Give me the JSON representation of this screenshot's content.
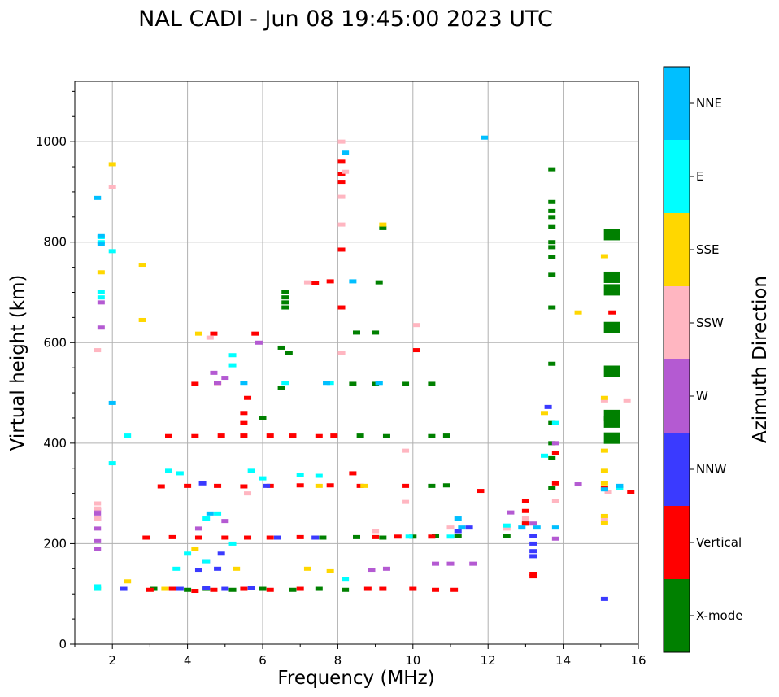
{
  "chart_data": {
    "type": "scatter",
    "title": "NAL CADI - Jun 08 19:45:00 2023 UTC",
    "xlabel": "Frequency (MHz)",
    "ylabel": "Virtual height (km)",
    "xlim": [
      1,
      16
    ],
    "ylim": [
      0,
      1120
    ],
    "xticks": [
      "2",
      "4",
      "6",
      "8",
      "10",
      "12",
      "14",
      "16"
    ],
    "yticks": [
      "0",
      "200",
      "400",
      "600",
      "800",
      "1000"
    ],
    "grid": true,
    "colorbar": {
      "label": "Azimuth Direction",
      "categories": [
        "X-mode",
        "Vertical",
        "NNW",
        "W",
        "SSW",
        "SSE",
        "E",
        "NNE"
      ],
      "colors": [
        "#008000",
        "#ff0000",
        "#3a3aff",
        "#b45ad2",
        "#ffb6c1",
        "#ffd700",
        "#00ffff",
        "#00bfff"
      ]
    },
    "series": [
      {
        "name": "X-mode",
        "points": [
          [
            3.1,
            110
          ],
          [
            4.0,
            108
          ],
          [
            4.5,
            110
          ],
          [
            5.2,
            108
          ],
          [
            6.0,
            110
          ],
          [
            6.8,
            108
          ],
          [
            7.5,
            110
          ],
          [
            8.2,
            108
          ],
          [
            7.6,
            212
          ],
          [
            8.5,
            213
          ],
          [
            9.2,
            212
          ],
          [
            10.0,
            214
          ],
          [
            10.6,
            215
          ],
          [
            11.2,
            215
          ],
          [
            10.5,
            315
          ],
          [
            10.9,
            316
          ],
          [
            8.6,
            415
          ],
          [
            9.3,
            414
          ],
          [
            10.5,
            414
          ],
          [
            10.9,
            415
          ],
          [
            8.4,
            518
          ],
          [
            9.0,
            518
          ],
          [
            9.8,
            518
          ],
          [
            10.5,
            518
          ],
          [
            6.5,
            590
          ],
          [
            6.7,
            580
          ],
          [
            8.5,
            620
          ],
          [
            9.0,
            620
          ],
          [
            9.2,
            828
          ],
          [
            9.1,
            720
          ],
          [
            12.5,
            216
          ],
          [
            13.0,
            240
          ],
          [
            13.7,
            945
          ],
          [
            13.7,
            880
          ],
          [
            13.7,
            862
          ],
          [
            13.7,
            850
          ],
          [
            13.7,
            830
          ],
          [
            13.7,
            800
          ],
          [
            13.7,
            790
          ],
          [
            13.7,
            770
          ],
          [
            13.7,
            735
          ],
          [
            13.7,
            670
          ],
          [
            13.7,
            558
          ],
          [
            13.7,
            440
          ],
          [
            13.7,
            400
          ],
          [
            13.7,
            370
          ],
          [
            13.7,
            310
          ],
          [
            15.3,
            815
          ],
          [
            15.3,
            730
          ],
          [
            15.3,
            705
          ],
          [
            15.3,
            630
          ],
          [
            15.3,
            543
          ],
          [
            15.3,
            455
          ],
          [
            15.3,
            442
          ],
          [
            15.3,
            410
          ],
          [
            6.6,
            700
          ],
          [
            6.6,
            690
          ],
          [
            6.6,
            680
          ],
          [
            6.6,
            670
          ],
          [
            6.5,
            510
          ],
          [
            6.0,
            450
          ]
        ]
      },
      {
        "name": "Vertical",
        "points": [
          [
            3.0,
            108
          ],
          [
            3.6,
            110
          ],
          [
            4.2,
            106
          ],
          [
            4.7,
            108
          ],
          [
            5.5,
            110
          ],
          [
            6.2,
            108
          ],
          [
            7.0,
            110
          ],
          [
            8.8,
            110
          ],
          [
            9.2,
            110
          ],
          [
            10.0,
            110
          ],
          [
            10.6,
            108
          ],
          [
            11.1,
            108
          ],
          [
            2.9,
            212
          ],
          [
            3.6,
            213
          ],
          [
            4.3,
            212
          ],
          [
            5.0,
            212
          ],
          [
            5.6,
            212
          ],
          [
            6.2,
            212
          ],
          [
            7.0,
            213
          ],
          [
            9.0,
            213
          ],
          [
            9.6,
            214
          ],
          [
            10.5,
            214
          ],
          [
            3.3,
            314
          ],
          [
            4.0,
            315
          ],
          [
            4.8,
            315
          ],
          [
            5.5,
            314
          ],
          [
            6.2,
            315
          ],
          [
            7.0,
            316
          ],
          [
            7.8,
            316
          ],
          [
            8.6,
            315
          ],
          [
            9.8,
            315
          ],
          [
            3.5,
            414
          ],
          [
            4.2,
            414
          ],
          [
            4.9,
            415
          ],
          [
            5.5,
            415
          ],
          [
            6.2,
            415
          ],
          [
            6.8,
            415
          ],
          [
            7.5,
            414
          ],
          [
            7.9,
            415
          ],
          [
            5.5,
            440
          ],
          [
            5.5,
            460
          ],
          [
            5.6,
            490
          ],
          [
            4.8,
            520
          ],
          [
            4.2,
            518
          ],
          [
            8.1,
            960
          ],
          [
            8.1,
            935
          ],
          [
            8.1,
            920
          ],
          [
            8.1,
            785
          ],
          [
            8.1,
            670
          ],
          [
            8.1,
            580
          ],
          [
            10.1,
            585
          ],
          [
            7.4,
            718
          ],
          [
            7.8,
            722
          ],
          [
            5.8,
            618
          ],
          [
            4.7,
            618
          ],
          [
            8.4,
            340
          ],
          [
            13.0,
            285
          ],
          [
            13.0,
            265
          ],
          [
            13.0,
            240
          ],
          [
            13.2,
            140
          ],
          [
            13.2,
            135
          ],
          [
            13.8,
            320
          ],
          [
            13.8,
            380
          ],
          [
            15.1,
            310
          ],
          [
            15.3,
            660
          ],
          [
            15.8,
            302
          ],
          [
            11.8,
            305
          ]
        ]
      },
      {
        "name": "NNW",
        "points": [
          [
            3.8,
            110
          ],
          [
            4.5,
            112
          ],
          [
            5.0,
            110
          ],
          [
            5.7,
            112
          ],
          [
            4.3,
            148
          ],
          [
            4.8,
            150
          ],
          [
            4.5,
            165
          ],
          [
            4.9,
            180
          ],
          [
            6.4,
            212
          ],
          [
            7.4,
            212
          ],
          [
            11.2,
            225
          ],
          [
            11.5,
            232
          ],
          [
            13.2,
            175
          ],
          [
            13.2,
            185
          ],
          [
            13.2,
            200
          ],
          [
            13.2,
            215
          ],
          [
            13.6,
            472
          ],
          [
            15.1,
            90
          ],
          [
            6.1,
            315
          ],
          [
            4.4,
            320
          ],
          [
            2.3,
            110
          ]
        ]
      },
      {
        "name": "W",
        "points": [
          [
            1.6,
            268
          ],
          [
            1.6,
            260
          ],
          [
            1.6,
            250
          ],
          [
            1.6,
            230
          ],
          [
            1.6,
            205
          ],
          [
            1.6,
            190
          ],
          [
            4.3,
            230
          ],
          [
            5.0,
            245
          ],
          [
            4.8,
            520
          ],
          [
            5.0,
            530
          ],
          [
            4.7,
            540
          ],
          [
            5.9,
            600
          ],
          [
            8.9,
            148
          ],
          [
            9.3,
            150
          ],
          [
            10.6,
            160
          ],
          [
            11.0,
            160
          ],
          [
            11.6,
            160
          ],
          [
            12.6,
            262
          ],
          [
            13.2,
            240
          ],
          [
            13.8,
            400
          ],
          [
            13.8,
            210
          ],
          [
            14.4,
            318
          ],
          [
            1.7,
            630
          ],
          [
            1.7,
            680
          ]
        ]
      },
      {
        "name": "SSW",
        "points": [
          [
            1.6,
            280
          ],
          [
            1.6,
            270
          ],
          [
            1.6,
            250
          ],
          [
            2.0,
            910
          ],
          [
            4.6,
            610
          ],
          [
            8.1,
            1000
          ],
          [
            8.1,
            890
          ],
          [
            8.1,
            835
          ],
          [
            8.1,
            580
          ],
          [
            9.0,
            225
          ],
          [
            9.8,
            385
          ],
          [
            10.1,
            635
          ],
          [
            9.8,
            283
          ],
          [
            11.0,
            232
          ],
          [
            12.5,
            230
          ],
          [
            13.0,
            250
          ],
          [
            13.8,
            285
          ],
          [
            15.1,
            485
          ],
          [
            15.7,
            485
          ],
          [
            15.1,
            250
          ],
          [
            15.2,
            302
          ],
          [
            1.6,
            585
          ],
          [
            7.2,
            720
          ],
          [
            8.2,
            940
          ],
          [
            5.6,
            300
          ]
        ]
      },
      {
        "name": "SSE",
        "points": [
          [
            1.6,
            110
          ],
          [
            2.4,
            125
          ],
          [
            2.8,
            755
          ],
          [
            2.8,
            645
          ],
          [
            1.7,
            740
          ],
          [
            2.0,
            955
          ],
          [
            4.3,
            618
          ],
          [
            5.3,
            150
          ],
          [
            7.2,
            150
          ],
          [
            7.8,
            145
          ],
          [
            7.5,
            315
          ],
          [
            8.7,
            315
          ],
          [
            9.2,
            835
          ],
          [
            13.5,
            460
          ],
          [
            14.4,
            660
          ],
          [
            15.1,
            772
          ],
          [
            15.1,
            490
          ],
          [
            15.1,
            385
          ],
          [
            15.1,
            345
          ],
          [
            15.1,
            320
          ],
          [
            15.1,
            255
          ],
          [
            15.1,
            242
          ],
          [
            4.2,
            190
          ],
          [
            3.4,
            110
          ]
        ]
      },
      {
        "name": "E",
        "points": [
          [
            1.6,
            110
          ],
          [
            1.6,
            115
          ],
          [
            2.0,
            360
          ],
          [
            1.7,
            810
          ],
          [
            1.7,
            800
          ],
          [
            2.0,
            782
          ],
          [
            1.7,
            700
          ],
          [
            1.7,
            690
          ],
          [
            3.5,
            345
          ],
          [
            3.8,
            340
          ],
          [
            4.0,
            180
          ],
          [
            4.5,
            165
          ],
          [
            4.8,
            260
          ],
          [
            5.2,
            575
          ],
          [
            5.2,
            555
          ],
          [
            5.7,
            345
          ],
          [
            6.0,
            330
          ],
          [
            6.6,
            520
          ],
          [
            7.0,
            337
          ],
          [
            7.5,
            335
          ],
          [
            7.8,
            520
          ],
          [
            8.2,
            130
          ],
          [
            9.1,
            520
          ],
          [
            9.9,
            214
          ],
          [
            11.0,
            214
          ],
          [
            12.5,
            236
          ],
          [
            13.5,
            375
          ],
          [
            13.8,
            440
          ],
          [
            15.5,
            310
          ],
          [
            3.7,
            150
          ],
          [
            4.5,
            250
          ],
          [
            5.2,
            200
          ],
          [
            2.4,
            415
          ]
        ]
      },
      {
        "name": "NNE",
        "points": [
          [
            1.6,
            888
          ],
          [
            1.7,
            812
          ],
          [
            1.7,
            796
          ],
          [
            7.7,
            520
          ],
          [
            8.2,
            978
          ],
          [
            8.4,
            722
          ],
          [
            9.1,
            520
          ],
          [
            11.9,
            1008
          ],
          [
            11.2,
            250
          ],
          [
            11.3,
            232
          ],
          [
            12.9,
            232
          ],
          [
            13.3,
            232
          ],
          [
            13.8,
            232
          ],
          [
            15.5,
            315
          ],
          [
            15.1,
            308
          ],
          [
            4.6,
            260
          ],
          [
            5.5,
            520
          ],
          [
            2.0,
            480
          ]
        ]
      }
    ]
  }
}
